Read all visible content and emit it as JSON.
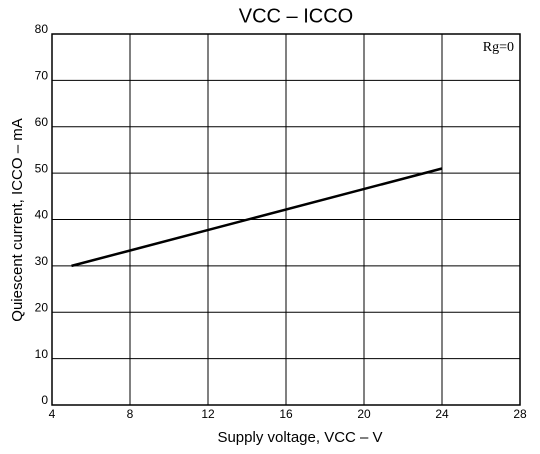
{
  "chart_data": {
    "type": "line",
    "title": "VCC – ICCO",
    "x_label": "Supply voltage, VCC – V",
    "y_label": "Quiescent current, ICCO – mA",
    "annotation": "Rg=0",
    "x": [
      5,
      24
    ],
    "values": [
      30,
      51
    ],
    "color": "#000000",
    "xlim": [
      4,
      28
    ],
    "xticks": [
      4,
      8,
      12,
      16,
      20,
      24,
      28
    ],
    "ylim": [
      0,
      80
    ],
    "yticks": [
      0,
      10,
      20,
      30,
      40,
      50,
      60,
      70,
      80
    ],
    "grid": true
  }
}
